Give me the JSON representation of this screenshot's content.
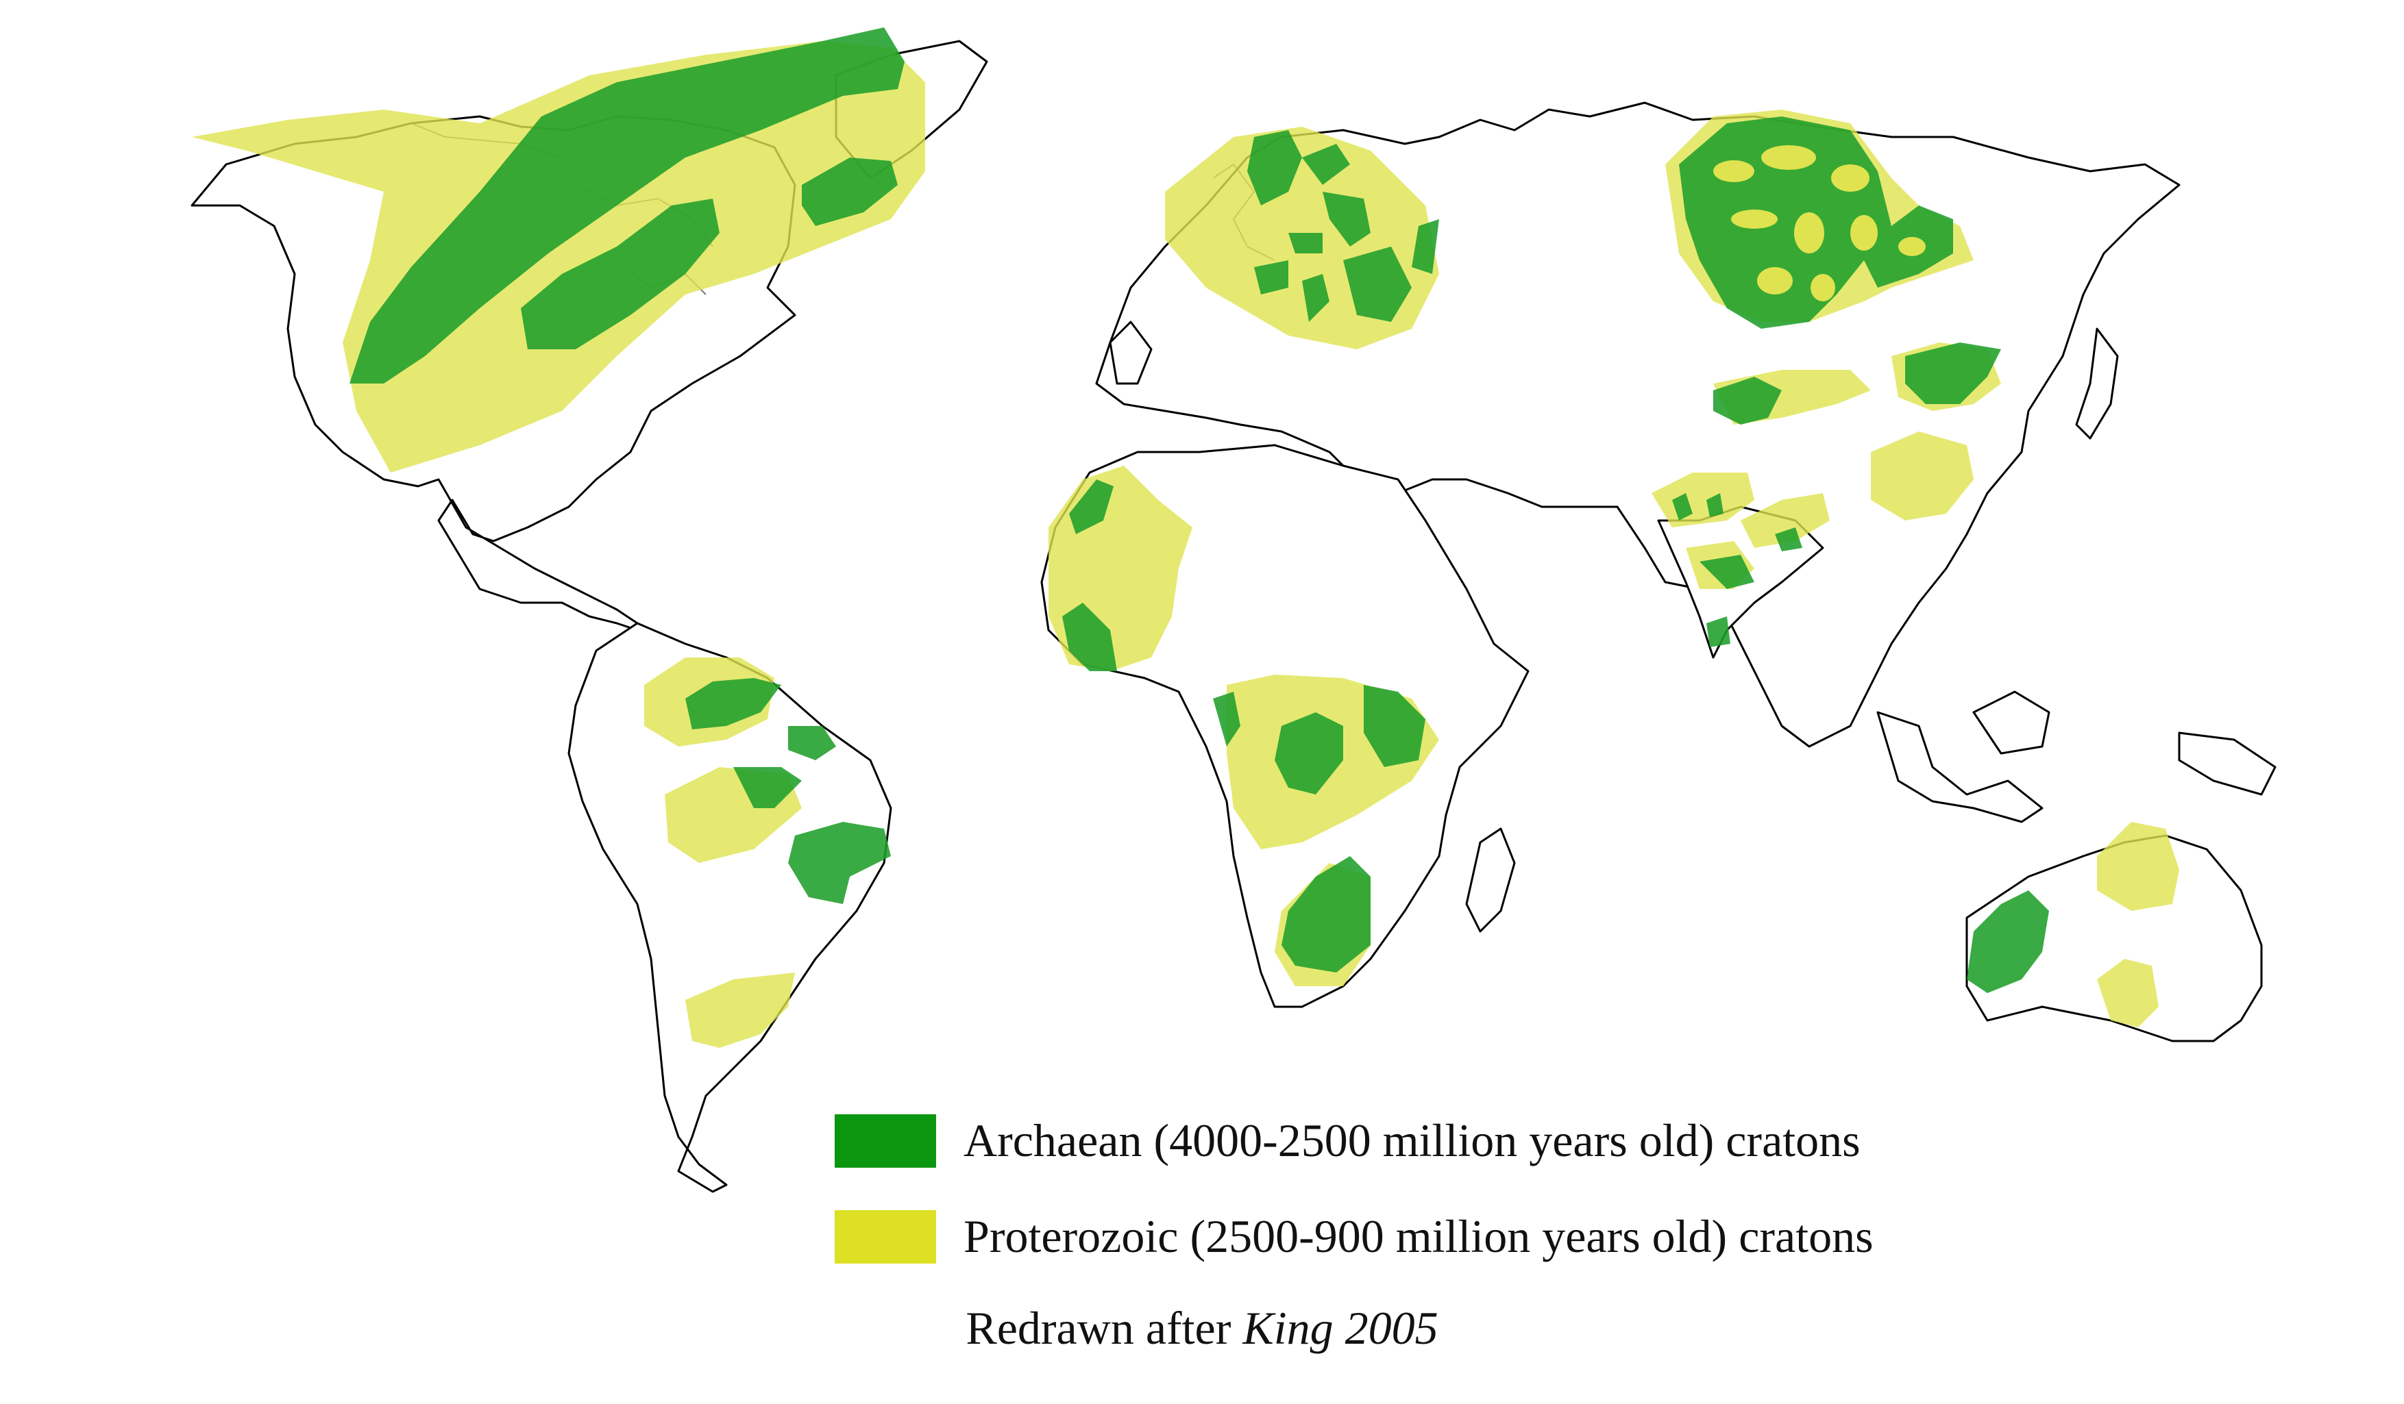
{
  "colors": {
    "archaean": "#1f9e2a",
    "archaean_swatch": "#0a960f",
    "proterozoic": "#dfe34f",
    "proterozoic_swatch": "#dde025",
    "coastline": "#000000",
    "background": "#ffffff"
  },
  "legend": {
    "archaean_label": "Archaean (4000-2500 million years old) cratons",
    "proterozoic_label": "Proterozoic (2500-900 million years old) cratons"
  },
  "credit": {
    "prefix": "Redrawn after ",
    "source": "King 2005"
  }
}
